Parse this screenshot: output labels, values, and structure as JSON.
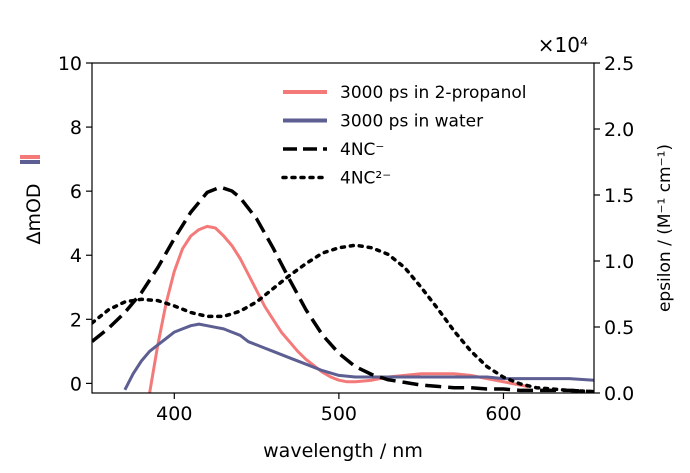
{
  "chart_data": {
    "type": "line",
    "title": "",
    "xlabel": "wavelength / nm",
    "ylabel_left": "ΔmOD",
    "ylabel_right": "epsilon / (M⁻¹ cm⁻¹)",
    "right_axis_multiplier": "×10⁴",
    "xlim": [
      350,
      655
    ],
    "ylim_left": [
      -0.3,
      10
    ],
    "ylim_right": [
      0,
      2.5
    ],
    "x_ticks": [
      400,
      500,
      600
    ],
    "y_left_ticks": [
      0,
      2,
      4,
      6,
      8,
      10
    ],
    "y_right_ticks": [
      "0.0",
      "0.5",
      "1.0",
      "1.5",
      "2.0",
      "2.5"
    ],
    "legend_position": "top-right",
    "series": [
      {
        "name": "3000 ps in 2-propanol",
        "axis": "left",
        "color": "#f47a7a",
        "style": "solid",
        "x": [
          385,
          390,
          395,
          400,
          405,
          410,
          415,
          420,
          425,
          430,
          435,
          440,
          445,
          450,
          455,
          460,
          465,
          470,
          475,
          480,
          485,
          490,
          495,
          500,
          505,
          510,
          520,
          530,
          540,
          550,
          560,
          570,
          580,
          590,
          600,
          610,
          615
        ],
        "y": [
          -0.3,
          1.2,
          2.5,
          3.5,
          4.2,
          4.6,
          4.8,
          4.9,
          4.85,
          4.6,
          4.3,
          3.9,
          3.4,
          2.9,
          2.4,
          2.0,
          1.6,
          1.3,
          1.0,
          0.75,
          0.55,
          0.35,
          0.2,
          0.1,
          0.05,
          0.05,
          0.1,
          0.2,
          0.25,
          0.3,
          0.3,
          0.3,
          0.25,
          0.15,
          0.05,
          -0.05,
          -0.1
        ]
      },
      {
        "name": "3000 ps in water",
        "axis": "left",
        "color": "#5d5e92",
        "style": "solid",
        "x": [
          370,
          375,
          380,
          385,
          390,
          395,
          400,
          405,
          410,
          415,
          420,
          425,
          430,
          435,
          440,
          445,
          450,
          455,
          460,
          470,
          480,
          490,
          500,
          510,
          520,
          530,
          540,
          550,
          560,
          570,
          580,
          590,
          600,
          610,
          620,
          630,
          640,
          655
        ],
        "y": [
          -0.2,
          0.3,
          0.7,
          1.0,
          1.2,
          1.4,
          1.6,
          1.7,
          1.8,
          1.85,
          1.8,
          1.75,
          1.7,
          1.6,
          1.5,
          1.3,
          1.2,
          1.1,
          1.0,
          0.8,
          0.6,
          0.4,
          0.25,
          0.2,
          0.2,
          0.2,
          0.2,
          0.2,
          0.2,
          0.2,
          0.2,
          0.2,
          0.15,
          0.15,
          0.15,
          0.15,
          0.15,
          0.1
        ]
      },
      {
        "name": "4NC⁻",
        "axis": "right",
        "color": "#000000",
        "style": "dashed",
        "x": [
          350,
          360,
          370,
          380,
          390,
          400,
          410,
          420,
          428,
          435,
          440,
          450,
          460,
          470,
          480,
          490,
          500,
          510,
          520,
          530,
          540,
          550,
          560,
          570,
          580,
          590,
          600,
          610,
          620,
          630,
          640,
          655
        ],
        "y": [
          0.39,
          0.49,
          0.61,
          0.76,
          0.95,
          1.17,
          1.37,
          1.52,
          1.56,
          1.53,
          1.48,
          1.32,
          1.1,
          0.86,
          0.63,
          0.44,
          0.3,
          0.2,
          0.14,
          0.1,
          0.08,
          0.06,
          0.05,
          0.04,
          0.04,
          0.03,
          0.03,
          0.02,
          0.02,
          0.02,
          0.02,
          0.01
        ]
      },
      {
        "name": "4NC²⁻",
        "axis": "right",
        "color": "#000000",
        "style": "dotted",
        "x": [
          350,
          360,
          370,
          380,
          390,
          400,
          410,
          420,
          430,
          440,
          450,
          460,
          470,
          480,
          490,
          500,
          510,
          520,
          530,
          540,
          550,
          560,
          570,
          580,
          590,
          600,
          610,
          620,
          630,
          640,
          655
        ],
        "y": [
          0.53,
          0.63,
          0.69,
          0.71,
          0.7,
          0.66,
          0.61,
          0.58,
          0.58,
          0.62,
          0.69,
          0.79,
          0.89,
          0.98,
          1.06,
          1.1,
          1.12,
          1.1,
          1.05,
          0.95,
          0.8,
          0.64,
          0.47,
          0.32,
          0.2,
          0.12,
          0.07,
          0.04,
          0.03,
          0.02,
          0.01
        ]
      }
    ]
  }
}
